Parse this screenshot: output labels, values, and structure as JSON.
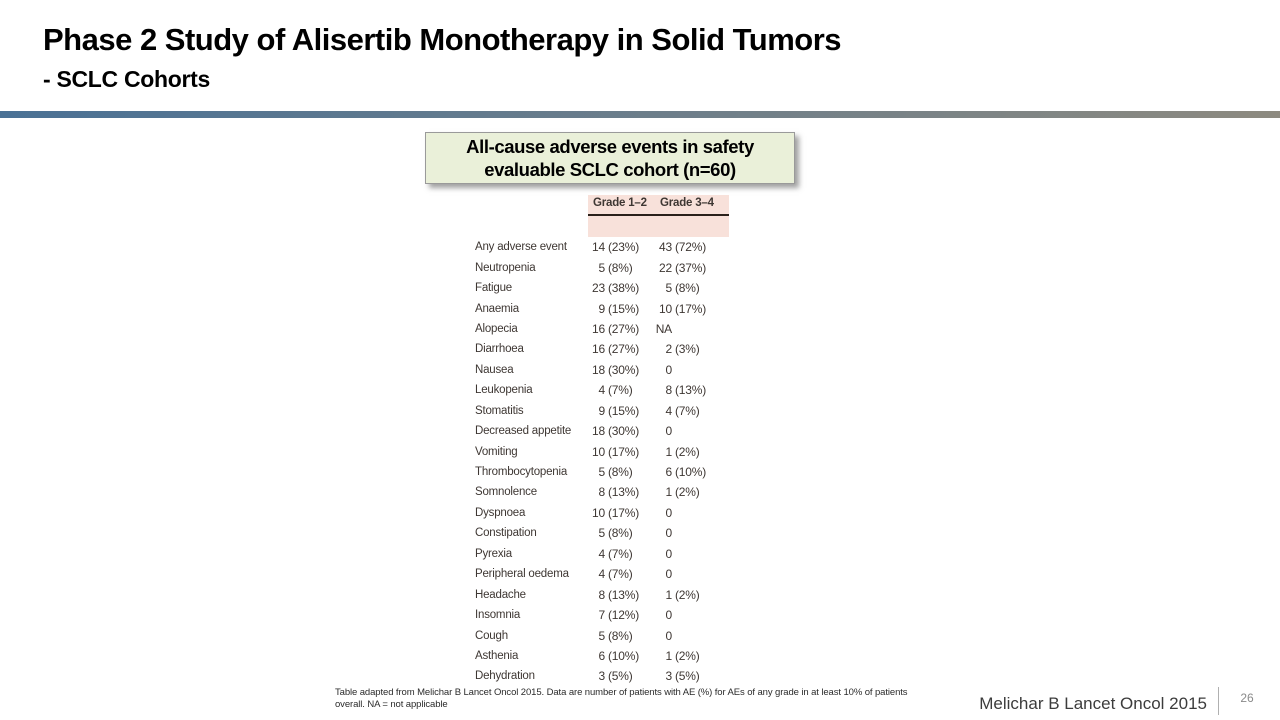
{
  "slide": {
    "title": "Phase 2 Study of Alisertib Monotherapy in Solid Tumors",
    "subtitle": "- SCLC Cohorts",
    "citation": "Melichar B Lancet Oncol 2015",
    "page_number": "26"
  },
  "callout": {
    "line1": "All-cause adverse events in safety",
    "line2": "evaluable SCLC cohort (n=60)"
  },
  "table": {
    "column_headers": [
      "Grade 1–2",
      "Grade 3–4"
    ],
    "rows": [
      {
        "label": "Any adverse event",
        "g12_n": "14",
        "g12_p": "(23%)",
        "g34_n": "43",
        "g34_p": "(72%)"
      },
      {
        "label": "Neutropenia",
        "g12_n": "5",
        "g12_p": "(8%)",
        "g34_n": "22",
        "g34_p": "(37%)"
      },
      {
        "label": "Fatigue",
        "g12_n": "23",
        "g12_p": "(38%)",
        "g34_n": "5",
        "g34_p": "(8%)"
      },
      {
        "label": "Anaemia",
        "g12_n": "9",
        "g12_p": "(15%)",
        "g34_n": "10",
        "g34_p": "(17%)"
      },
      {
        "label": "Alopecia",
        "g12_n": "16",
        "g12_p": "(27%)",
        "g34_n": "NA",
        "g34_p": ""
      },
      {
        "label": "Diarrhoea",
        "g12_n": "16",
        "g12_p": "(27%)",
        "g34_n": "2",
        "g34_p": "(3%)"
      },
      {
        "label": "Nausea",
        "g12_n": "18",
        "g12_p": "(30%)",
        "g34_n": "0",
        "g34_p": ""
      },
      {
        "label": "Leukopenia",
        "g12_n": "4",
        "g12_p": "(7%)",
        "g34_n": "8",
        "g34_p": "(13%)"
      },
      {
        "label": "Stomatitis",
        "g12_n": "9",
        "g12_p": "(15%)",
        "g34_n": "4",
        "g34_p": "(7%)"
      },
      {
        "label": "Decreased appetite",
        "g12_n": "18",
        "g12_p": "(30%)",
        "g34_n": "0",
        "g34_p": ""
      },
      {
        "label": "Vomiting",
        "g12_n": "10",
        "g12_p": "(17%)",
        "g34_n": "1",
        "g34_p": "(2%)"
      },
      {
        "label": "Thrombocytopenia",
        "g12_n": "5",
        "g12_p": "(8%)",
        "g34_n": "6",
        "g34_p": "(10%)"
      },
      {
        "label": "Somnolence",
        "g12_n": "8",
        "g12_p": "(13%)",
        "g34_n": "1",
        "g34_p": "(2%)"
      },
      {
        "label": "Dyspnoea",
        "g12_n": "10",
        "g12_p": "(17%)",
        "g34_n": "0",
        "g34_p": ""
      },
      {
        "label": "Constipation",
        "g12_n": "5",
        "g12_p": "(8%)",
        "g34_n": "0",
        "g34_p": ""
      },
      {
        "label": "Pyrexia",
        "g12_n": "4",
        "g12_p": "(7%)",
        "g34_n": "0",
        "g34_p": ""
      },
      {
        "label": "Peripheral oedema",
        "g12_n": "4",
        "g12_p": "(7%)",
        "g34_n": "0",
        "g34_p": ""
      },
      {
        "label": "Headache",
        "g12_n": "8",
        "g12_p": "(13%)",
        "g34_n": "1",
        "g34_p": "(2%)"
      },
      {
        "label": "Insomnia",
        "g12_n": "7",
        "g12_p": "(12%)",
        "g34_n": "0",
        "g34_p": ""
      },
      {
        "label": "Cough",
        "g12_n": "5",
        "g12_p": "(8%)",
        "g34_n": "0",
        "g34_p": ""
      },
      {
        "label": "Asthenia",
        "g12_n": "6",
        "g12_p": "(10%)",
        "g34_n": "1",
        "g34_p": "(2%)"
      },
      {
        "label": "Dehydration",
        "g12_n": "3",
        "g12_p": "(5%)",
        "g34_n": "3",
        "g34_p": "(5%)"
      }
    ],
    "footnote_line1": "Table adapted from Melichar B Lancet Oncol 2015. Data are number of patients with AE (%) for AEs of any grade in at least 10% of patients",
    "footnote_line2": "overall. NA = not applicable"
  },
  "colors": {
    "header_band": "#f8e1da",
    "divider_left": "#4a7195",
    "divider_right": "#8d8a80",
    "callout_bg": "#eaf0d9",
    "table_text": "#3e3733"
  }
}
